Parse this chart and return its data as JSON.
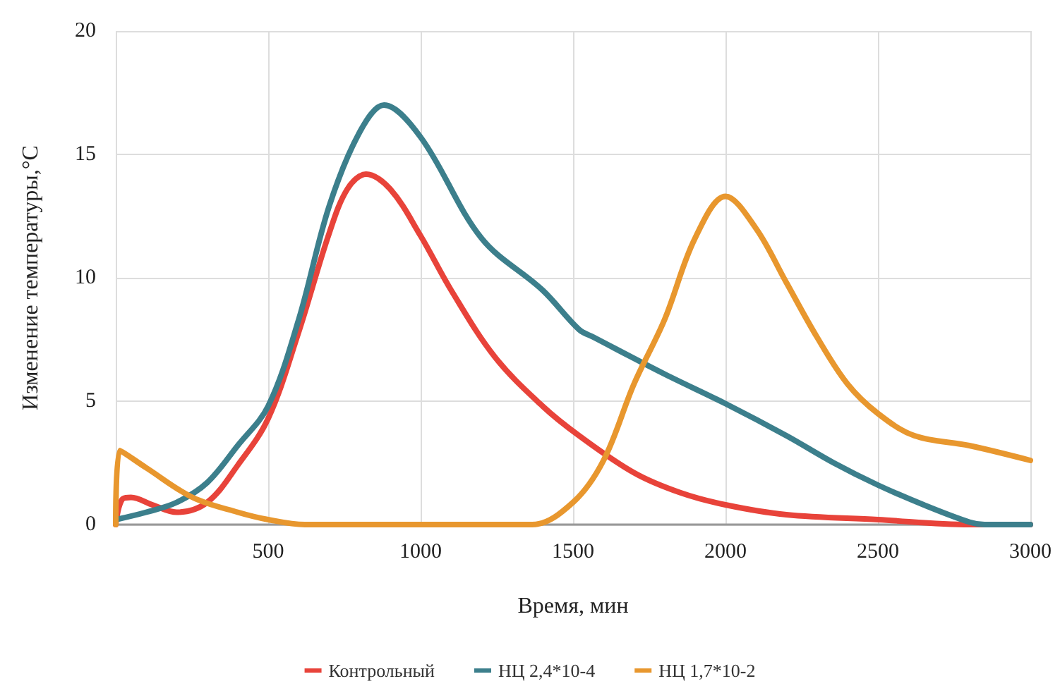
{
  "chart_data": {
    "type": "line",
    "xlabel": "Время, мин",
    "ylabel": "Изменение температуры,°C",
    "xlim": [
      0,
      3000
    ],
    "ylim": [
      0,
      20
    ],
    "xticks": [
      500,
      1000,
      1500,
      2000,
      2500,
      3000
    ],
    "yticks": [
      0,
      5,
      10,
      15,
      20
    ],
    "grid": true,
    "legend": "bottom",
    "marker": "none",
    "line_style": "solid",
    "series": [
      {
        "name": "Контрольный",
        "color": "#e8433a",
        "x": [
          0,
          20,
          50,
          120,
          200,
          300,
          400,
          500,
          600,
          700,
          760,
          821,
          900,
          1000,
          1100,
          1243,
          1400,
          1520,
          1700,
          1850,
          2000,
          2200,
          2500,
          2800,
          3000
        ],
        "values": [
          0,
          1,
          1.1,
          0.8,
          0.5,
          0.9,
          2.4,
          4.3,
          7.8,
          11.8,
          13.6,
          14.2,
          13.6,
          11.7,
          9.5,
          6.8,
          4.8,
          3.6,
          2.1,
          1.3,
          0.8,
          0.4,
          0.2,
          0,
          0
        ]
      },
      {
        "name": "НЦ 2,4*10-4",
        "color": "#3c7f8c",
        "x": [
          0,
          100,
          200,
          300,
          400,
          500,
          600,
          700,
          800,
          880,
          1000,
          1200,
          1400,
          1520,
          1566,
          1800,
          2000,
          2200,
          2355,
          2500,
          2650,
          2800,
          2850,
          3000
        ],
        "values": [
          0.2,
          0.5,
          0.9,
          1.7,
          3.2,
          4.8,
          8.3,
          12.9,
          15.9,
          17,
          15.7,
          11.6,
          9.5,
          7.9,
          7.6,
          6.1,
          4.9,
          3.6,
          2.5,
          1.6,
          0.8,
          0.1,
          0,
          0
        ]
      },
      {
        "name": "НЦ 1,7*10-2",
        "color": "#e8972e",
        "x": [
          0,
          13,
          100,
          252,
          400,
          500,
          620,
          1000,
          1366,
          1500,
          1600,
          1700,
          1800,
          1900,
          2000,
          2100,
          2200,
          2300,
          2400,
          2500,
          2620,
          2800,
          3000
        ],
        "values": [
          0,
          3,
          2.3,
          1.1,
          0.5,
          0.2,
          0,
          0,
          0,
          0.9,
          2.6,
          5.7,
          8.3,
          11.6,
          13.3,
          12,
          9.8,
          7.6,
          5.7,
          4.5,
          3.6,
          3.2,
          2.6
        ]
      }
    ]
  }
}
